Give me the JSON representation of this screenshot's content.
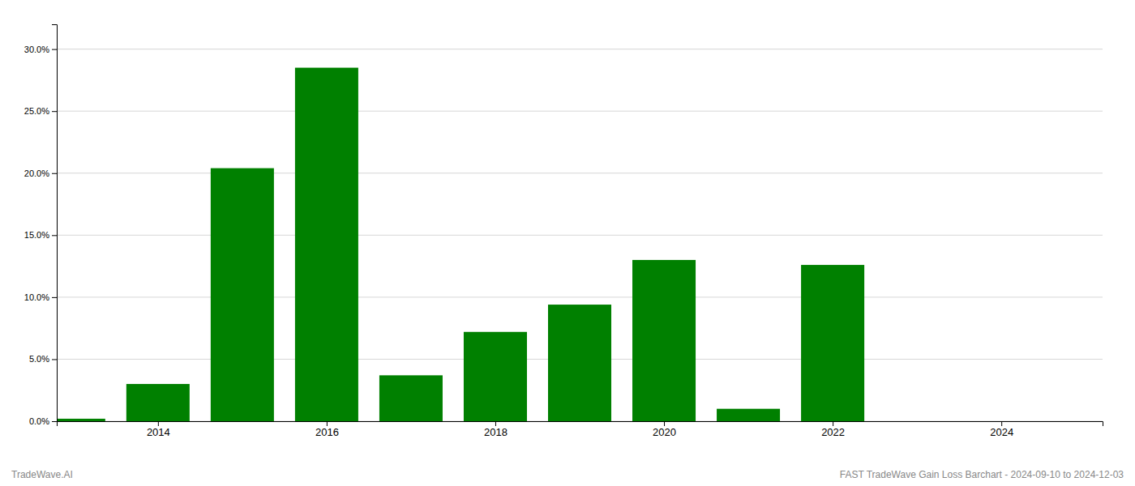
{
  "chart_data": {
    "type": "bar",
    "x": [
      2013,
      2014,
      2015,
      2016,
      2017,
      2018,
      2019,
      2020,
      2021,
      2022,
      2023
    ],
    "values": [
      0.002,
      0.03,
      0.204,
      0.285,
      0.037,
      0.072,
      0.094,
      0.13,
      0.01,
      0.126,
      0.0
    ],
    "color": "#008000",
    "xlim": [
      2012.8,
      2025.2
    ],
    "xticks": [
      2014,
      2016,
      2018,
      2020,
      2022,
      2024
    ],
    "ylim": [
      0.0,
      0.32
    ],
    "yticks": [
      {
        "value": 0.0,
        "label": "0.0%"
      },
      {
        "value": 0.05,
        "label": "5.0%"
      },
      {
        "value": 0.1,
        "label": "10.0%"
      },
      {
        "value": 0.15,
        "label": "15.0%"
      },
      {
        "value": 0.2,
        "label": "20.0%"
      },
      {
        "value": 0.25,
        "label": "25.0%"
      },
      {
        "value": 0.3,
        "label": "30.0%"
      }
    ],
    "grid": true,
    "annotations": [
      "TradeWave.AI",
      "FAST TradeWave Gain Loss Barchart - 2024-09-10 to 2024-12-03"
    ]
  }
}
